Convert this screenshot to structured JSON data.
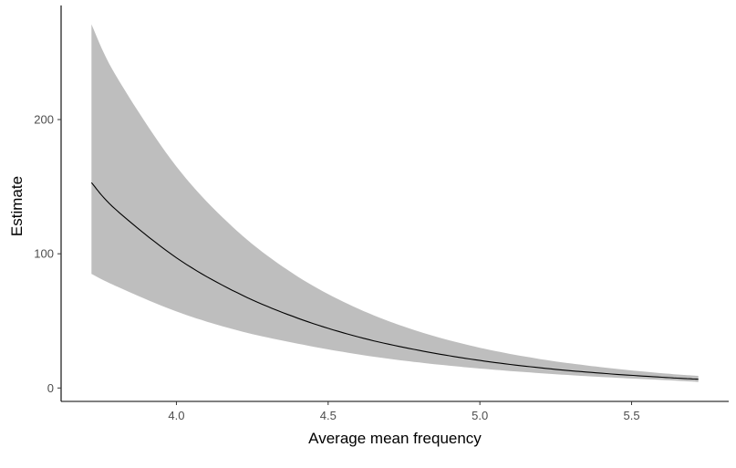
{
  "chart_data": {
    "type": "area",
    "xlabel": "Average mean frequency",
    "ylabel": "Estimate",
    "xlim": [
      3.62,
      5.82
    ],
    "ylim": [
      -10,
      285
    ],
    "x_ticks": [
      {
        "value": 4.0,
        "label": "4.0"
      },
      {
        "value": 4.5,
        "label": "4.5"
      },
      {
        "value": 5.0,
        "label": "5.0"
      },
      {
        "value": 5.5,
        "label": "5.5"
      }
    ],
    "y_ticks": [
      {
        "value": 0,
        "label": "0"
      },
      {
        "value": 100,
        "label": "100"
      },
      {
        "value": 200,
        "label": "200"
      }
    ],
    "grid": false,
    "legend": "none",
    "colors": {
      "line": "#000000",
      "ribbon": "#bebebe",
      "axis": "#000000"
    },
    "series": [
      {
        "x": [
          3.72,
          3.8,
          4.0,
          4.2,
          4.4,
          4.6,
          4.8,
          5.0,
          5.2,
          5.4,
          5.6,
          5.72
        ],
        "y": [
          153,
          133,
          97,
          71,
          52,
          38,
          28,
          20.5,
          15,
          11,
          8,
          6.5
        ],
        "lower": [
          85,
          76,
          57,
          43,
          33,
          25,
          19,
          14.5,
          11,
          8.2,
          6,
          4.5
        ],
        "upper": [
          271,
          233,
          165,
          117,
          83,
          59,
          42,
          30,
          21.5,
          15.5,
          11,
          9
        ]
      }
    ]
  }
}
